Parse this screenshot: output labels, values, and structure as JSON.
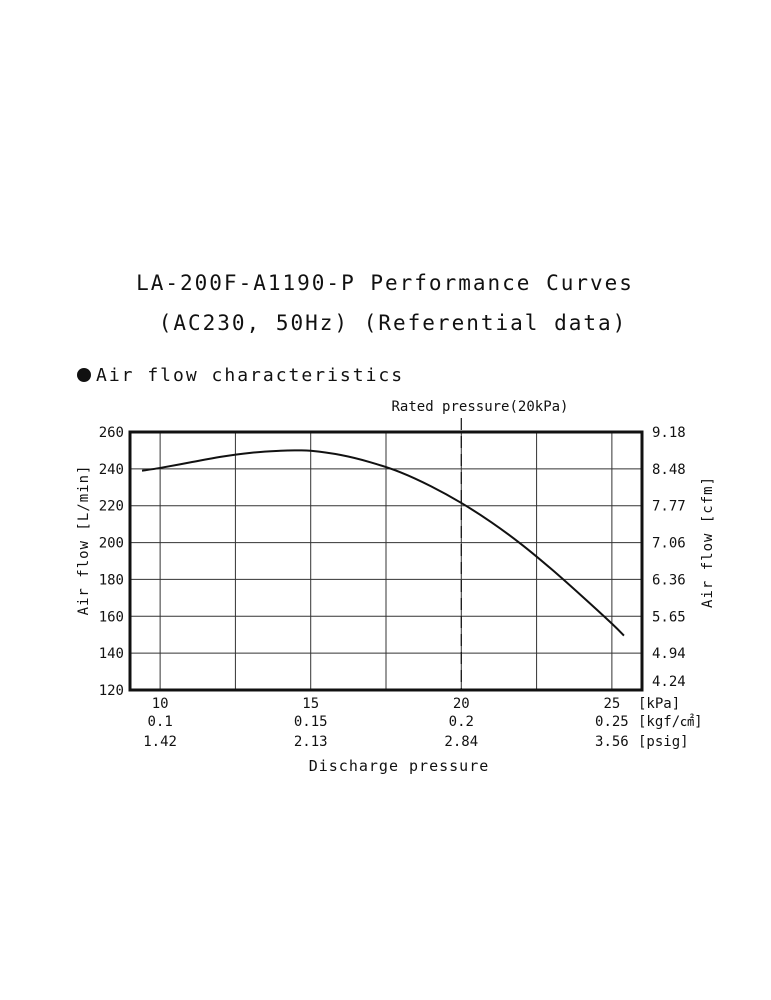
{
  "title": "LA-200F-A1190-P Performance Curves",
  "subtitle": "(AC230, 50Hz) (Referential data)",
  "section": {
    "label": "Air flow characteristics",
    "bullet": "filled-circle-icon"
  },
  "annotation": "Rated pressure(20kPa)",
  "xlabel": "Discharge pressure",
  "ylabel_left": "Air flow [L/min]",
  "ylabel_right": "Air flow [cfm]",
  "chart_data": {
    "type": "line",
    "title": "LA-200F-A1190-P Performance Curves",
    "subtitle": "(AC230, 50Hz) (Referential data)",
    "xlabel": "Discharge pressure",
    "ylabel": "Air flow [L/min]",
    "ylabel_right": "Air flow [cfm]",
    "xlim": [
      9,
      26
    ],
    "ylim": [
      120,
      260
    ],
    "grid": true,
    "x_ticks": [
      {
        "kpa": "10",
        "kgf": "0.1",
        "psig": "1.42"
      },
      {
        "kpa": "15",
        "kgf": "0.15",
        "psig": "2.13"
      },
      {
        "kpa": "20",
        "kgf": "0.2",
        "psig": "2.84"
      },
      {
        "kpa": "25",
        "kgf": "0.25",
        "psig": "3.56"
      }
    ],
    "x_units": [
      "[kPa]",
      "[kgf/㎠]",
      "[psig]"
    ],
    "y_ticks": [
      "120",
      "140",
      "160",
      "180",
      "200",
      "220",
      "240",
      "260"
    ],
    "y_right_ticks": [
      "4.24",
      "4.94",
      "5.65",
      "6.36",
      "7.06",
      "7.77",
      "8.48",
      "9.18"
    ],
    "rated_pressure_x": 20,
    "series": [
      {
        "x": [
          9.4,
          10,
          11,
          12,
          13,
          14,
          14.5,
          15,
          16,
          17,
          18,
          19,
          20,
          21,
          22,
          23,
          24,
          25,
          25.4
        ],
        "y": [
          239,
          240.5,
          243.5,
          246.5,
          248.7,
          249.8,
          250,
          249.8,
          247.5,
          243.5,
          238,
          230.5,
          221.5,
          211,
          199,
          185.5,
          171,
          156,
          149.5
        ]
      }
    ]
  }
}
